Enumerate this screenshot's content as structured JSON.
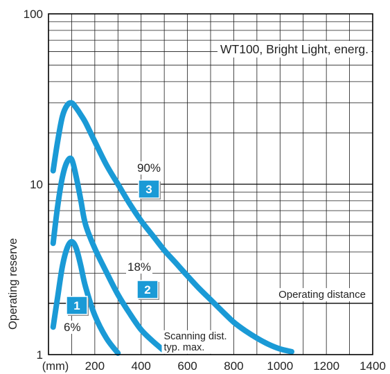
{
  "chart_data": {
    "type": "line",
    "title": "WT100, Bright Light, energ.",
    "xlabel": "",
    "ylabel": "Operating reserve",
    "x_unit": "(mm)",
    "x_range": [
      0,
      1400
    ],
    "y_range": [
      1,
      100
    ],
    "y_scale": "log",
    "grid": true,
    "x_ticks": [
      200,
      400,
      600,
      800,
      1000,
      1200,
      1400
    ],
    "y_ticks": [
      1,
      10,
      100
    ],
    "x_tick_labels": [
      "200",
      "400",
      "600",
      "800",
      "1000",
      "1200",
      "1400"
    ],
    "y_tick_labels": [
      "1",
      "10",
      "100"
    ],
    "series": [
      {
        "name": "6%",
        "badge": "1",
        "x": [
          20,
          40,
          60,
          80,
          100,
          120,
          140,
          160,
          200,
          250,
          300
        ],
        "y": [
          1.45,
          2.2,
          3.3,
          4.2,
          4.6,
          4.2,
          3.3,
          2.5,
          1.7,
          1.25,
          1.02
        ]
      },
      {
        "name": "18%",
        "badge": "2",
        "x": [
          20,
          40,
          60,
          80,
          100,
          120,
          140,
          160,
          200,
          250,
          300,
          350,
          400,
          450,
          500
        ],
        "y": [
          4.5,
          7.5,
          11,
          13.5,
          14,
          11,
          8,
          5.8,
          4.2,
          3.05,
          2.25,
          1.75,
          1.4,
          1.2,
          1.05
        ]
      },
      {
        "name": "90%",
        "badge": "3",
        "x": [
          20,
          40,
          60,
          80,
          100,
          120,
          140,
          160,
          200,
          250,
          300,
          350,
          400,
          450,
          500,
          550,
          600,
          650,
          700,
          750,
          800,
          850,
          900,
          950,
          1000,
          1050
        ],
        "y": [
          12,
          18,
          25,
          29,
          30,
          28,
          25.5,
          23,
          17.8,
          13,
          10,
          7.7,
          6.1,
          5,
          4.1,
          3.45,
          2.9,
          2.45,
          2.1,
          1.8,
          1.55,
          1.38,
          1.25,
          1.15,
          1.08,
          1.04
        ]
      }
    ],
    "series_color": "#1a9ad6",
    "operating_distance": {
      "label": "Operating distance",
      "y": 2
    },
    "annotations": [
      {
        "text": "Scanning dist."
      },
      {
        "text": "typ. max."
      }
    ]
  }
}
